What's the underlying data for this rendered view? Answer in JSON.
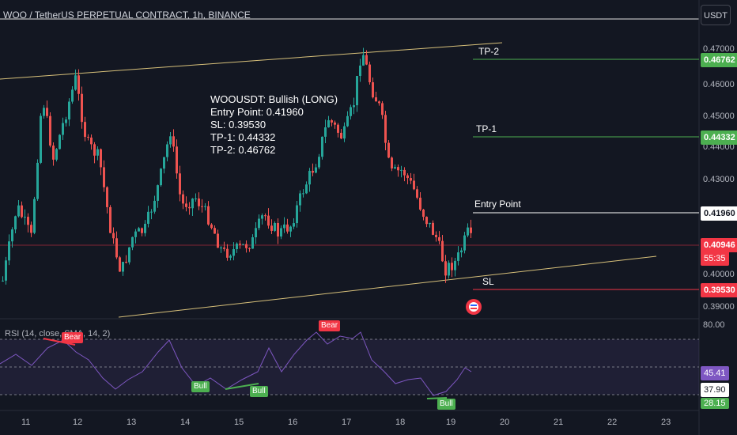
{
  "header": {
    "title": "WOO / TetherUS PERPETUAL CONTRACT, 1h, BINANCE",
    "currency_button": "USDT"
  },
  "annotation": {
    "lines": [
      "WOOUSDT: Bullish (LONG)",
      "Entry Point: 0.41960",
      "SL: 0.39530",
      "TP-1: 0.44332",
      "TP-2: 0.46762"
    ]
  },
  "levels": {
    "tp2": {
      "label": "TP-2",
      "price": "0.46762",
      "color": "#4caf50"
    },
    "tp1": {
      "label": "TP-1",
      "price": "0.44332",
      "color": "#4caf50"
    },
    "entry": {
      "label": "Entry Point",
      "price": "0.41960",
      "color": "#ffffff"
    },
    "sl": {
      "label": "SL",
      "price": "0.39530",
      "color": "#f23645"
    },
    "current": {
      "price": "0.40946",
      "countdown": "55:35",
      "color": "#f23645"
    }
  },
  "price_axis": [
    "0.47000",
    "0.46000",
    "0.45000",
    "0.44000",
    "0.43000",
    "0.40000",
    "0.39000"
  ],
  "rsi": {
    "label": "RSI (14, close, SMA, 14, 2)",
    "axis_top": "80.00",
    "value": "45.41",
    "sma_value": "37.90",
    "lower_value": "28.15",
    "badges": {
      "bear1": "Bear",
      "bear2": "Bear",
      "bull1": "Bull",
      "bull2": "Bull",
      "bull3": "Bull"
    }
  },
  "time_axis": [
    "11",
    "12",
    "13",
    "14",
    "15",
    "16",
    "17",
    "18",
    "19",
    "20",
    "21",
    "22",
    "23"
  ],
  "colors": {
    "background": "#131722",
    "up": "#26a69a",
    "down": "#ef5350",
    "channel": "#d7c07a",
    "rsi_line": "#7e57c2"
  }
}
